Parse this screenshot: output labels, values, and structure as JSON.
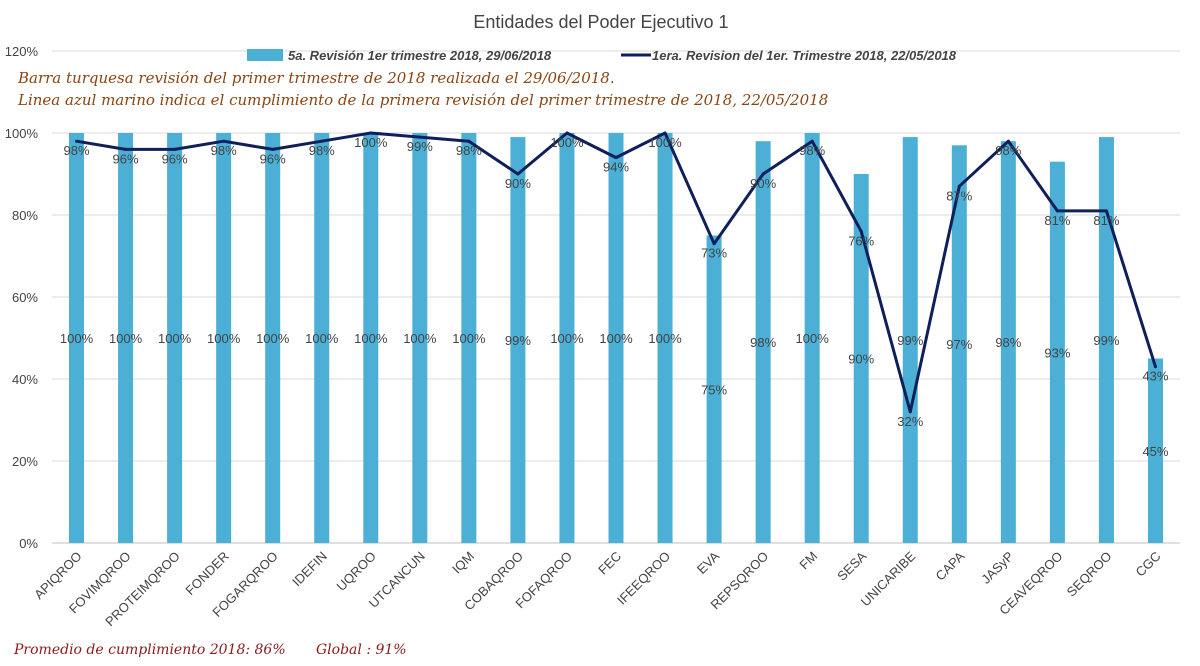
{
  "chart_data": {
    "type": "bar",
    "title": "Entidades del Poder Ejecutivo 1",
    "categories": [
      "APIQROO",
      "FOVIMQROO",
      "PROTEIMQROO",
      "FONDER",
      "FOGARQROO",
      "IDEFIN",
      "UQROO",
      "UTCANCUN",
      "IQM",
      "COBAQROO",
      "FOFAQROO",
      "FEC",
      "IFEEQROO",
      "EVA",
      "REPSQROO",
      "FM",
      "SESA",
      "UNICARIBE",
      "CAPA",
      "JASyP",
      "CEAVEQROO",
      "SEQROO",
      "CGC"
    ],
    "series": [
      {
        "name": "5a. Revisión 1er trimestre 2018, 29/06/2018",
        "kind": "bar",
        "color": "#4BAFD6",
        "values": [
          100,
          100,
          100,
          100,
          100,
          100,
          100,
          100,
          100,
          99,
          100,
          100,
          100,
          75,
          98,
          100,
          90,
          99,
          97,
          98,
          93,
          99,
          45
        ],
        "labels": [
          "100%",
          "100%",
          "100%",
          "100%",
          "100%",
          "100%",
          "100%",
          "100%",
          "100%",
          "99%",
          "100%",
          "100%",
          "100%",
          "75%",
          "98%",
          "100%",
          "90%",
          "99%",
          "97%",
          "98%",
          "93%",
          "99%",
          "45%"
        ]
      },
      {
        "name": "1era. Revision del 1er. Trimestre 2018, 22/05/2018",
        "kind": "line",
        "color": "#0F1F5C",
        "values": [
          98,
          96,
          96,
          98,
          96,
          98,
          100,
          99,
          98,
          90,
          100,
          94,
          100,
          73,
          90,
          98,
          76,
          32,
          87,
          98,
          81,
          81,
          43
        ],
        "labels": [
          "98%",
          "96%",
          "96%",
          "98%",
          "96%",
          "98%",
          "100%",
          "99%",
          "98%",
          "90%",
          "100%",
          "94%",
          "100%",
          "73%",
          "90%",
          "98%",
          "76%",
          "32%",
          "87%",
          "98%",
          "81%",
          "81%",
          "43%"
        ]
      }
    ],
    "ylim": [
      0,
      120
    ],
    "yticks": [
      "0%",
      "20%",
      "40%",
      "60%",
      "80%",
      "100%",
      "120%"
    ],
    "grid": true,
    "legend": "top"
  },
  "notes": [
    "Barra turquesa  revisión  del  primer  trimestre  de  2018  realizada  el  29/06/2018.",
    "Linea  azul  marino  indica  el  cumplimiento  de  la primera  revisión  del  primer  trimestre  de  2018,   22/05/2018"
  ],
  "footer": {
    "promedio": "Promedio  de  cumplimiento  2018:  86%",
    "global": "Global  :  91%"
  }
}
